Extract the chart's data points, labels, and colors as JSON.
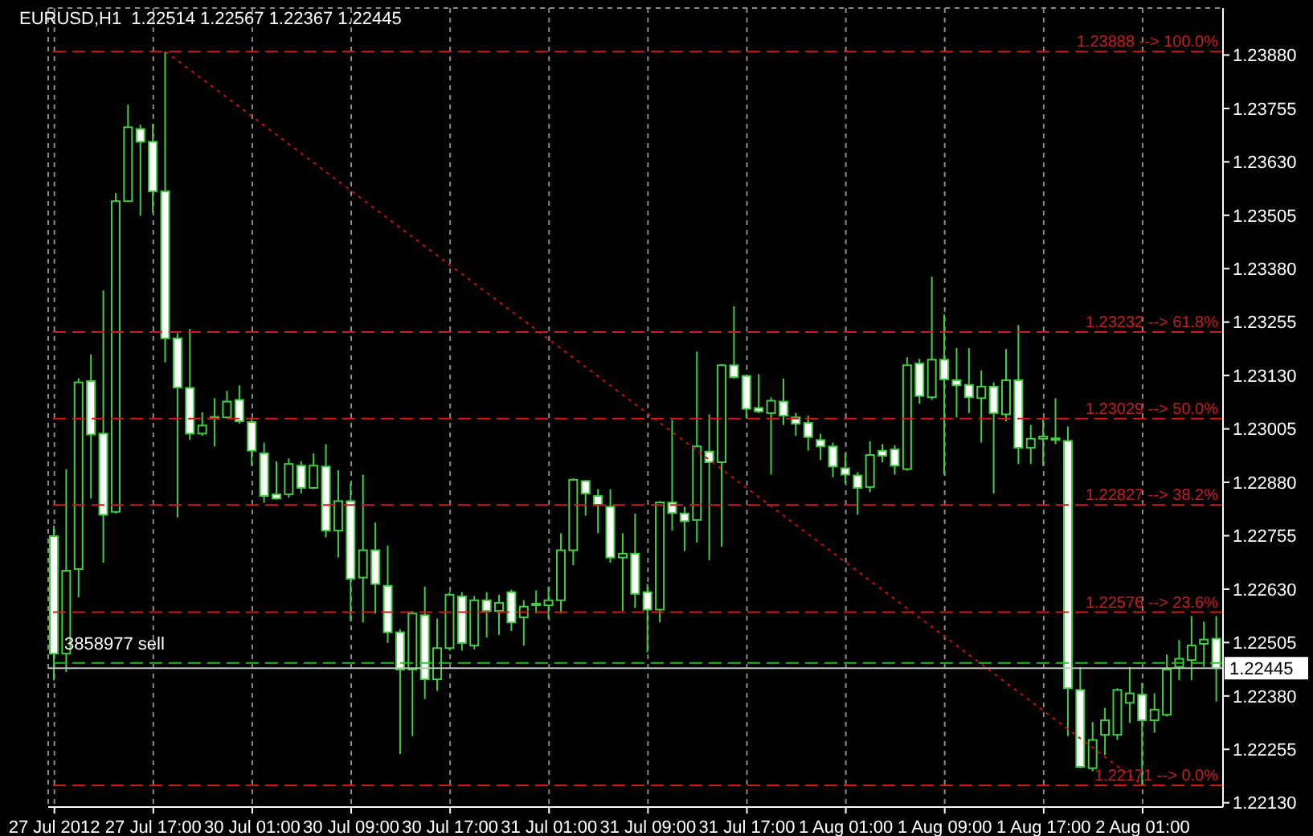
{
  "chart_data": {
    "type": "candlestick",
    "title": "EURUSD,H1  1.22514 1.22567 1.22367 1.22445",
    "categories": [
      "27 Jul 2012",
      null,
      null,
      null,
      null,
      null,
      null,
      null,
      "27 Jul 17:00",
      null,
      null,
      null,
      null,
      null,
      null,
      null,
      "30 Jul 01:00",
      null,
      null,
      null,
      null,
      null,
      null,
      null,
      "30 Jul 09:00",
      null,
      null,
      null,
      null,
      null,
      null,
      null,
      "30 Jul 17:00",
      null,
      null,
      null,
      null,
      null,
      null,
      null,
      "31 Jul 01:00",
      null,
      null,
      null,
      null,
      null,
      null,
      null,
      "31 Jul 09:00",
      null,
      null,
      null,
      null,
      null,
      null,
      null,
      "31 Jul 17:00",
      null,
      null,
      null,
      null,
      null,
      null,
      null,
      "1 Aug 01:00",
      null,
      null,
      null,
      null,
      null,
      null,
      null,
      "1 Aug 09:00",
      null,
      null,
      null,
      null,
      null,
      null,
      null,
      "1 Aug 17:00",
      null,
      null,
      null,
      null,
      null,
      null,
      null,
      "2 Aug 01:00",
      null,
      null,
      null,
      null,
      null,
      null
    ],
    "ohlc": [
      [
        1.22754,
        1.22779,
        1.22417,
        1.22479
      ],
      [
        1.22479,
        1.22911,
        1.22436,
        1.22673
      ],
      [
        1.22677,
        1.23123,
        1.22611,
        1.23114
      ],
      [
        1.23117,
        1.23179,
        1.22842,
        1.22992
      ],
      [
        1.22994,
        1.23329,
        1.22692,
        1.22804
      ],
      [
        1.22811,
        1.23557,
        1.22807,
        1.23538
      ],
      [
        1.23538,
        1.23764,
        1.23536,
        1.23711
      ],
      [
        1.23707,
        1.23717,
        1.23504,
        1.23677
      ],
      [
        1.23677,
        1.23719,
        1.23511,
        1.23561
      ],
      [
        1.23561,
        1.23888,
        1.23161,
        1.23217
      ],
      [
        1.23217,
        1.23229,
        1.22798,
        1.23102
      ],
      [
        1.23101,
        1.23239,
        1.22979,
        1.22994
      ],
      [
        1.22994,
        1.23044,
        1.22989,
        1.23013
      ],
      [
        1.23031,
        1.23077,
        1.22964,
        1.23033
      ],
      [
        1.23032,
        1.23094,
        1.23029,
        1.23069
      ],
      [
        1.23073,
        1.23107,
        1.23017,
        1.23023
      ],
      [
        1.23021,
        1.23029,
        1.22919,
        1.22954
      ],
      [
        1.22948,
        1.22973,
        1.22832,
        1.22848
      ],
      [
        1.22852,
        1.22929,
        1.22839,
        1.22842
      ],
      [
        1.22852,
        1.22936,
        1.22844,
        1.22923
      ],
      [
        1.22919,
        1.22929,
        1.22854,
        1.22867
      ],
      [
        1.22867,
        1.22948,
        1.22864,
        1.22919
      ],
      [
        1.22917,
        1.22969,
        1.22751,
        1.22767
      ],
      [
        1.22767,
        1.22908,
        1.22704,
        1.22836
      ],
      [
        1.22836,
        1.22879,
        1.22554,
        1.22654
      ],
      [
        1.22657,
        1.22898,
        1.22552,
        1.22721
      ],
      [
        1.22721,
        1.22786,
        1.22573,
        1.22642
      ],
      [
        1.22638,
        1.22732,
        1.22504,
        1.22529
      ],
      [
        1.22529,
        1.22536,
        1.22244,
        1.22442
      ],
      [
        1.22442,
        1.22579,
        1.22286,
        1.22573
      ],
      [
        1.22569,
        1.22636,
        1.22373,
        1.22419
      ],
      [
        1.22419,
        1.22561,
        1.22392,
        1.22492
      ],
      [
        1.22492,
        1.22623,
        1.22486,
        1.22617
      ],
      [
        1.22613,
        1.22623,
        1.22486,
        1.22504
      ],
      [
        1.22498,
        1.22614,
        1.22489,
        1.22604
      ],
      [
        1.22604,
        1.22623,
        1.22517,
        1.22579
      ],
      [
        1.22579,
        1.22617,
        1.22523,
        1.22598
      ],
      [
        1.22623,
        1.22629,
        1.22532,
        1.22552
      ],
      [
        1.22564,
        1.22604,
        1.22498,
        1.22589
      ],
      [
        1.22593,
        1.22627,
        1.22573,
        1.22596
      ],
      [
        1.22592,
        1.22636,
        1.22561,
        1.22604
      ],
      [
        1.22604,
        1.22761,
        1.22573,
        1.22721
      ],
      [
        1.22721,
        1.22889,
        1.22686,
        1.22886
      ],
      [
        1.22883,
        1.22886,
        1.22802,
        1.22854
      ],
      [
        1.22848,
        1.22864,
        1.22761,
        1.22827
      ],
      [
        1.22823,
        1.22864,
        1.22692,
        1.22704
      ],
      [
        1.22704,
        1.22761,
        1.22579,
        1.22713
      ],
      [
        1.22713,
        1.22807,
        1.22586,
        1.22619
      ],
      [
        1.22623,
        1.22642,
        1.22482,
        1.22582
      ],
      [
        1.22582,
        1.22836,
        1.22552,
        1.22833
      ],
      [
        1.22833,
        1.23026,
        1.22767,
        1.22808
      ],
      [
        1.22807,
        1.22823,
        1.22719,
        1.22789
      ],
      [
        1.22792,
        1.23186,
        1.22739,
        1.22964
      ],
      [
        1.22952,
        1.23039,
        1.22698,
        1.22927
      ],
      [
        1.22927,
        1.23157,
        1.22729,
        1.23154
      ],
      [
        1.23154,
        1.23292,
        1.23123,
        1.23126
      ],
      [
        1.23129,
        1.23132,
        1.23029,
        1.23052
      ],
      [
        1.23054,
        1.23133,
        1.23042,
        1.23046
      ],
      [
        1.23042,
        1.23079,
        1.22898,
        1.23071
      ],
      [
        1.23069,
        1.23123,
        1.23014,
        1.23036
      ],
      [
        1.23032,
        1.23042,
        1.22989,
        1.23017
      ],
      [
        1.23019,
        1.23036,
        1.22954,
        1.22986
      ],
      [
        1.22979,
        1.22994,
        1.22932,
        1.22964
      ],
      [
        1.22964,
        1.22973,
        1.22892,
        1.22917
      ],
      [
        1.22913,
        1.22948,
        1.22877,
        1.22898
      ],
      [
        1.22896,
        1.22904,
        1.22804,
        1.22867
      ],
      [
        1.22869,
        1.22976,
        1.22857,
        1.22944
      ],
      [
        1.22954,
        1.22969,
        1.22927,
        1.22942
      ],
      [
        1.22957,
        1.22967,
        1.22898,
        1.22919
      ],
      [
        1.22911,
        1.23173,
        1.22907,
        1.23154
      ],
      [
        1.23158,
        1.23169,
        1.23064,
        1.23082
      ],
      [
        1.23079,
        1.23361,
        1.23073,
        1.23167
      ],
      [
        1.23167,
        1.23273,
        1.22898,
        1.23121
      ],
      [
        1.23119,
        1.23194,
        1.23032,
        1.23107
      ],
      [
        1.23108,
        1.23194,
        1.23042,
        1.23079
      ],
      [
        1.23077,
        1.23142,
        1.22973,
        1.23104
      ],
      [
        1.23104,
        1.23114,
        1.22854,
        1.23042
      ],
      [
        1.23039,
        1.23192,
        1.23023,
        1.23119
      ],
      [
        1.23119,
        1.23248,
        1.22923,
        1.22961
      ],
      [
        1.22961,
        1.23014,
        1.22923,
        1.22982
      ],
      [
        1.22982,
        1.23027,
        1.22919,
        1.22987
      ],
      [
        1.22983,
        1.23077,
        1.22969,
        1.22981
      ],
      [
        1.22977,
        1.23011,
        1.22286,
        1.22398
      ],
      [
        1.22394,
        1.22448,
        1.22211,
        1.22214
      ],
      [
        1.22211,
        1.22319,
        1.22204,
        1.22277
      ],
      [
        1.22289,
        1.22352,
        1.22242,
        1.22323
      ],
      [
        1.22289,
        1.22398,
        1.22277,
        1.22394
      ],
      [
        1.22364,
        1.22448,
        1.22317,
        1.22386
      ],
      [
        1.22383,
        1.22411,
        1.22171,
        1.22323
      ],
      [
        1.22323,
        1.22386,
        1.22294,
        1.22348
      ],
      [
        1.22336,
        1.22477,
        1.22332,
        1.22442
      ],
      [
        1.22448,
        1.22511,
        1.22417,
        1.22467
      ],
      [
        1.22464,
        1.22567,
        1.22417,
        1.22498
      ],
      [
        1.22502,
        1.22554,
        1.22448,
        1.22512
      ],
      [
        1.22514,
        1.22567,
        1.22367,
        1.22445
      ]
    ],
    "color": "#44cc44",
    "series": [
      {
        "type": "line",
        "color": "#c01818",
        "line_style": "dotted",
        "values": [
          null,
          null,
          null,
          null,
          null,
          null,
          null,
          null,
          null,
          1.23888,
          null,
          null,
          null,
          null,
          null,
          null,
          null,
          null,
          null,
          null,
          null,
          null,
          null,
          null,
          null,
          null,
          null,
          null,
          null,
          null,
          null,
          null,
          null,
          null,
          null,
          null,
          null,
          null,
          null,
          null,
          null,
          null,
          null,
          null,
          null,
          null,
          null,
          null,
          null,
          null,
          null,
          null,
          null,
          null,
          null,
          null,
          null,
          null,
          null,
          null,
          null,
          null,
          null,
          null,
          null,
          null,
          null,
          null,
          null,
          null,
          null,
          null,
          null,
          null,
          null,
          null,
          null,
          null,
          null,
          null,
          null,
          null,
          null,
          null,
          null,
          null,
          null,
          null,
          1.22171,
          null,
          null,
          null,
          null,
          null,
          null
        ]
      }
    ],
    "ylim": [
      1.2212,
      1.2399
    ],
    "yticks": [
      {
        "value": 1.2388,
        "label": "1.23880"
      },
      {
        "value": 1.23755,
        "label": "1.23755"
      },
      {
        "value": 1.2363,
        "label": "1.23630"
      },
      {
        "value": 1.23505,
        "label": "1.23505"
      },
      {
        "value": 1.2338,
        "label": "1.23380"
      },
      {
        "value": 1.23255,
        "label": "1.23255"
      },
      {
        "value": 1.2313,
        "label": "1.23130"
      },
      {
        "value": 1.23005,
        "label": "1.23005"
      },
      {
        "value": 1.2288,
        "label": "1.22880"
      },
      {
        "value": 1.22755,
        "label": "1.22755"
      },
      {
        "value": 1.2263,
        "label": "1.22630"
      },
      {
        "value": 1.22505,
        "label": "1.22505"
      },
      {
        "value": 1.2238,
        "label": "1.22380"
      },
      {
        "value": 1.22255,
        "label": "1.22255"
      },
      {
        "value": 1.2213,
        "label": "1.22130"
      }
    ],
    "grid": true,
    "ref_lines": [
      {
        "axis": "y",
        "value": 1.23888,
        "label": "1.23888 --> 100.0%",
        "color": "#c81e1e",
        "line_style": "dashed"
      },
      {
        "axis": "y",
        "value": 1.23232,
        "label": "1.23232 --> 61.8%",
        "color": "#c81e1e",
        "line_style": "dashed"
      },
      {
        "axis": "y",
        "value": 1.23029,
        "label": "1.23029 --> 50.0%",
        "color": "#c81e1e",
        "line_style": "dashed"
      },
      {
        "axis": "y",
        "value": 1.22827,
        "label": "1.22827 --> 38.2%",
        "color": "#c81e1e",
        "line_style": "dashed"
      },
      {
        "axis": "y",
        "value": 1.22576,
        "label": "1.22576 --> 23.6%",
        "color": "#c81e1e",
        "line_style": "dashed"
      },
      {
        "axis": "y",
        "value": 1.22171,
        "label": "1.22171 --> 0.0%",
        "color": "#c81e1e",
        "line_style": "dashed"
      },
      {
        "axis": "y",
        "value": 1.22457,
        "color": "#3cb43c",
        "line_style": "dashed"
      },
      {
        "axis": "y",
        "value": 1.22445,
        "label": "1.22445",
        "color": "#c0c0c0",
        "line_style": "solid"
      }
    ],
    "annotations": [
      {
        "text": "3858977 sell",
        "y": 1.22457
      }
    ]
  }
}
